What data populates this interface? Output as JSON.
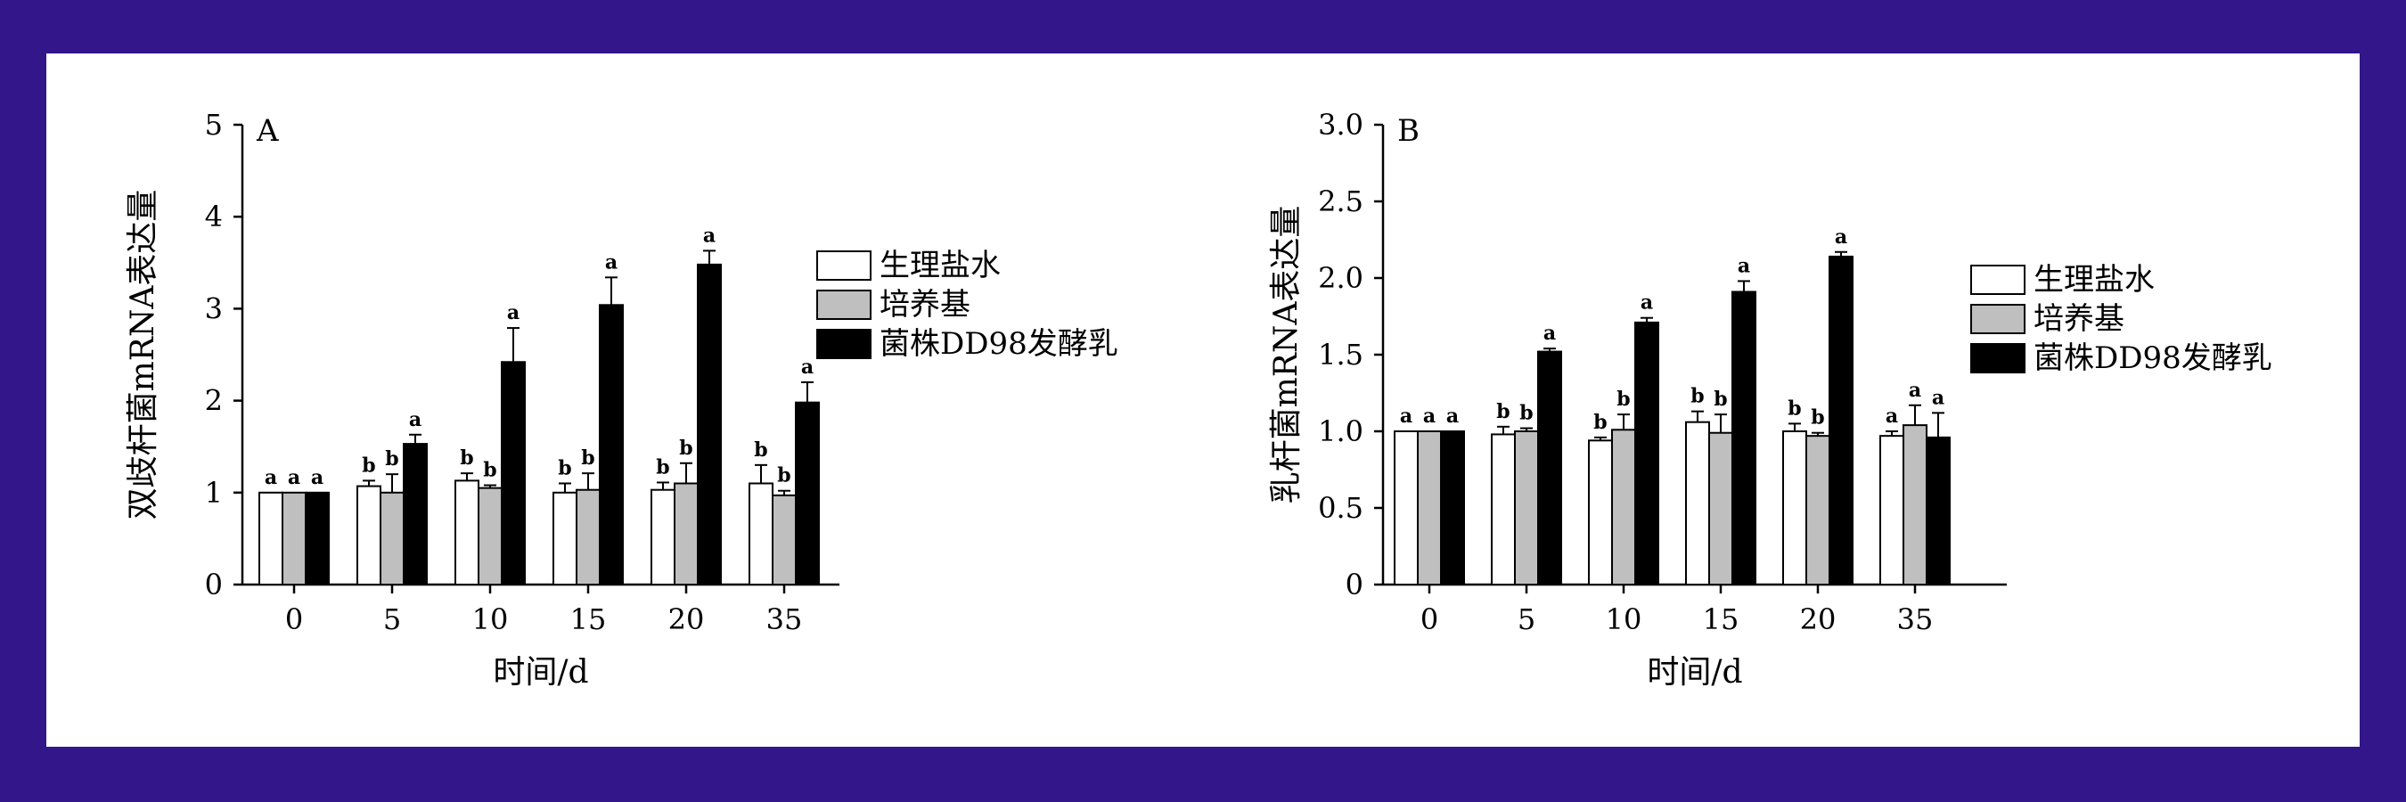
{
  "chart_data": [
    {
      "type": "bar",
      "panel_label": "A",
      "categories": [
        "0",
        "5",
        "10",
        "15",
        "20",
        "35"
      ],
      "xlabel": "时间/d",
      "ylabel": "双歧杆菌mRNA表达量",
      "ylim": [
        0,
        5
      ],
      "yticks": [
        "0",
        "1",
        "2",
        "3",
        "4",
        "5"
      ],
      "legend_position": "right",
      "series": [
        {
          "name": "生理盐水",
          "color": "#ffffff",
          "values": [
            1.0,
            1.07,
            1.13,
            1.0,
            1.03,
            1.1
          ],
          "errors": [
            0.0,
            0.06,
            0.08,
            0.1,
            0.08,
            0.2
          ],
          "letters": [
            "a",
            "b",
            "b",
            "b",
            "b",
            "b"
          ]
        },
        {
          "name": "培养基",
          "color": "#bfbfbf",
          "values": [
            1.0,
            1.0,
            1.05,
            1.03,
            1.1,
            0.97
          ],
          "errors": [
            0.0,
            0.2,
            0.03,
            0.18,
            0.22,
            0.05
          ],
          "letters": [
            "a",
            "b",
            "b",
            "b",
            "b",
            "b"
          ]
        },
        {
          "name": "菌株DD98发酵乳",
          "color": "#000000",
          "values": [
            1.0,
            1.53,
            2.42,
            3.04,
            3.48,
            1.98
          ],
          "errors": [
            0.0,
            0.1,
            0.37,
            0.3,
            0.15,
            0.22
          ],
          "letters": [
            "a",
            "a",
            "a",
            "a",
            "a",
            "a"
          ]
        }
      ]
    },
    {
      "type": "bar",
      "panel_label": "B",
      "categories": [
        "0",
        "5",
        "10",
        "15",
        "20",
        "35"
      ],
      "xlabel": "时间/d",
      "ylabel": "乳杆菌mRNA表达量",
      "ylim": [
        0,
        3.0
      ],
      "yticks": [
        "0",
        "0.5",
        "1.0",
        "1.5",
        "2.0",
        "2.5",
        "3.0"
      ],
      "legend_position": "right",
      "series": [
        {
          "name": "生理盐水",
          "color": "#ffffff",
          "values": [
            1.0,
            0.98,
            0.94,
            1.06,
            1.0,
            0.97
          ],
          "errors": [
            0.0,
            0.05,
            0.02,
            0.07,
            0.05,
            0.03
          ],
          "letters": [
            "a",
            "b",
            "b",
            "b",
            "b",
            "a"
          ]
        },
        {
          "name": "培养基",
          "color": "#bfbfbf",
          "values": [
            1.0,
            1.0,
            1.01,
            0.99,
            0.97,
            1.04
          ],
          "errors": [
            0.0,
            0.02,
            0.1,
            0.12,
            0.02,
            0.13
          ],
          "letters": [
            "a",
            "b",
            "b",
            "b",
            "b",
            "a"
          ]
        },
        {
          "name": "菌株DD98发酵乳",
          "color": "#000000",
          "values": [
            1.0,
            1.52,
            1.71,
            1.91,
            2.14,
            0.96
          ],
          "errors": [
            0.0,
            0.02,
            0.03,
            0.07,
            0.03,
            0.16
          ],
          "letters": [
            "a",
            "a",
            "a",
            "a",
            "a",
            "a"
          ]
        }
      ]
    }
  ]
}
